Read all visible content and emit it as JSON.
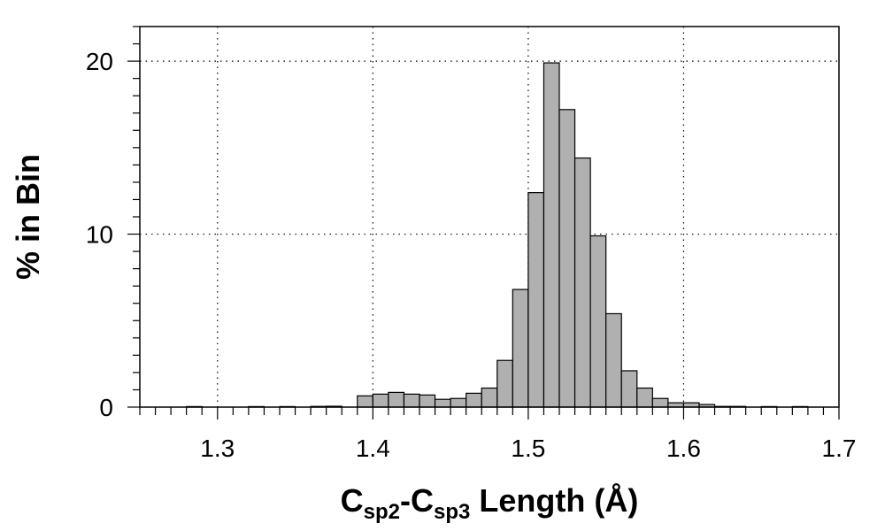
{
  "chart_data": {
    "type": "bar",
    "xlabel": {
      "main": "C",
      "sub1": "sp2",
      "mid": "-C",
      "sub2": "sp3",
      "rest": " Length (Å)"
    },
    "ylabel": "% in Bin",
    "xlim": [
      1.25,
      1.7
    ],
    "ylim": [
      0,
      22
    ],
    "bin_width": 0.01,
    "x_ticks": [
      1.3,
      1.4,
      1.5,
      1.6,
      1.7
    ],
    "x_tick_labels": [
      "1.3",
      "1.4",
      "1.5",
      "1.6",
      "1.7"
    ],
    "y_ticks": [
      0,
      10,
      20
    ],
    "y_tick_labels": [
      "0",
      "10",
      "20"
    ],
    "grid": true,
    "bar_color": "#b0b0b0",
    "bins": [
      {
        "start": 1.28,
        "value": 0.03
      },
      {
        "start": 1.32,
        "value": 0.03
      },
      {
        "start": 1.34,
        "value": 0.03
      },
      {
        "start": 1.36,
        "value": 0.04
      },
      {
        "start": 1.37,
        "value": 0.05
      },
      {
        "start": 1.39,
        "value": 0.65
      },
      {
        "start": 1.4,
        "value": 0.75
      },
      {
        "start": 1.41,
        "value": 0.85
      },
      {
        "start": 1.42,
        "value": 0.75
      },
      {
        "start": 1.43,
        "value": 0.7
      },
      {
        "start": 1.44,
        "value": 0.45
      },
      {
        "start": 1.45,
        "value": 0.5
      },
      {
        "start": 1.46,
        "value": 0.8
      },
      {
        "start": 1.47,
        "value": 1.1
      },
      {
        "start": 1.48,
        "value": 2.7
      },
      {
        "start": 1.49,
        "value": 6.8
      },
      {
        "start": 1.5,
        "value": 12.4
      },
      {
        "start": 1.51,
        "value": 19.9
      },
      {
        "start": 1.52,
        "value": 17.2
      },
      {
        "start": 1.53,
        "value": 14.4
      },
      {
        "start": 1.54,
        "value": 9.9
      },
      {
        "start": 1.55,
        "value": 5.4
      },
      {
        "start": 1.56,
        "value": 2.1
      },
      {
        "start": 1.57,
        "value": 1.1
      },
      {
        "start": 1.58,
        "value": 0.5
      },
      {
        "start": 1.59,
        "value": 0.25
      },
      {
        "start": 1.6,
        "value": 0.25
      },
      {
        "start": 1.61,
        "value": 0.15
      },
      {
        "start": 1.62,
        "value": 0.04
      },
      {
        "start": 1.63,
        "value": 0.04
      },
      {
        "start": 1.65,
        "value": 0.03
      },
      {
        "start": 1.67,
        "value": 0.03
      }
    ]
  }
}
